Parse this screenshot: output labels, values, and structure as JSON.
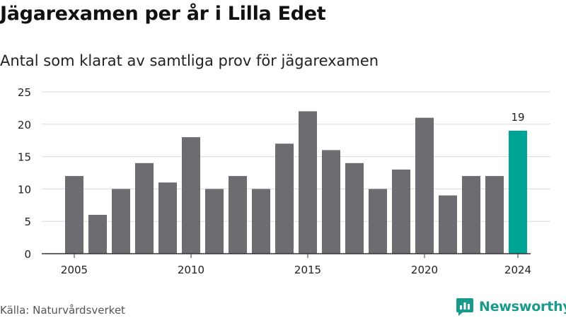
{
  "title": "Jägarexamen per år i Lilla Edet",
  "subtitle": "Antal som klarat av samtliga prov för jägarexamen",
  "source": "Källa: Naturvårdsverket",
  "brand": "Newsworthy",
  "colors": {
    "bar": "#6d6c71",
    "highlight": "#00a497",
    "grid": "#d9d9d9",
    "axis": "#333333",
    "brand": "#1a9a8c"
  },
  "chart_data": {
    "type": "bar",
    "x": [
      2005,
      2006,
      2007,
      2008,
      2009,
      2010,
      2011,
      2012,
      2013,
      2014,
      2015,
      2016,
      2017,
      2018,
      2019,
      2020,
      2021,
      2022,
      2023,
      2024
    ],
    "values": [
      12,
      6,
      10,
      14,
      11,
      18,
      10,
      12,
      10,
      17,
      22,
      16,
      14,
      10,
      13,
      21,
      9,
      12,
      12,
      19
    ],
    "highlight_index": 19,
    "highlight_label": "19",
    "ylim": [
      0,
      25
    ],
    "yticks": [
      "0",
      "5",
      "10",
      "15",
      "20",
      "25"
    ],
    "xticks": [
      "2005",
      "2010",
      "2015",
      "2020",
      "2024"
    ],
    "grid": true,
    "xlabel": "",
    "ylabel": ""
  }
}
